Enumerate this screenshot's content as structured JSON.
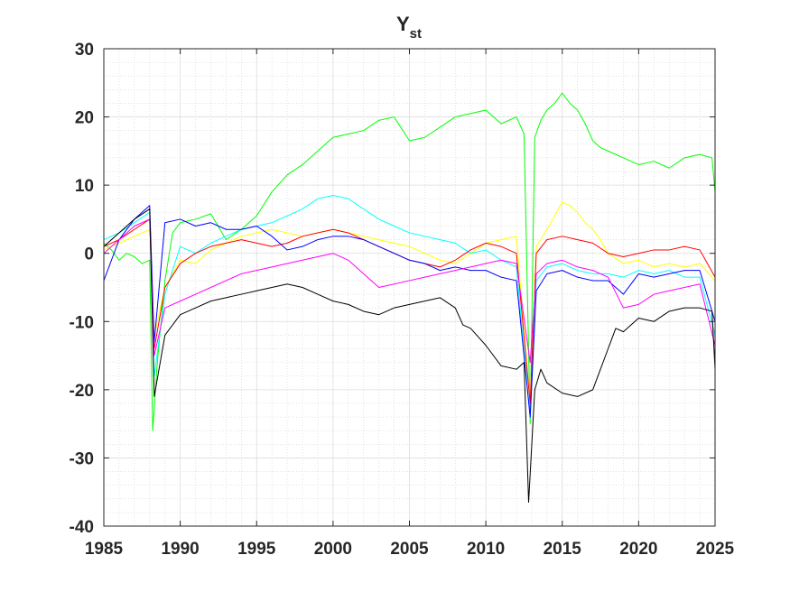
{
  "chart_data": {
    "type": "line",
    "title": "Y",
    "title_subscript": "st",
    "xlabel": "",
    "ylabel": "",
    "xlim": [
      1985,
      2025
    ],
    "ylim": [
      -40,
      30
    ],
    "x_ticks": [
      1985,
      1990,
      1995,
      2000,
      2005,
      2010,
      2015,
      2020,
      2025
    ],
    "y_ticks": [
      -40,
      -30,
      -20,
      -10,
      0,
      10,
      20,
      30
    ],
    "x_tick_labels": [
      "1985",
      "1990",
      "1995",
      "2000",
      "2005",
      "2010",
      "2015",
      "2020",
      "2025"
    ],
    "y_tick_labels": [
      "-40",
      "-30",
      "-20",
      "-10",
      "0",
      "10",
      "20",
      "30"
    ],
    "grid": true,
    "minor_grid": true,
    "legend": "none",
    "series": [
      {
        "color": "#00ff00",
        "x": [
          1985.0,
          1985.5,
          1986.0,
          1986.5,
          1987.0,
          1987.5,
          1988.0,
          1988.2,
          1988.5,
          1989.0,
          1989.5,
          1990.0,
          1991.0,
          1992.0,
          1993.0,
          1994.0,
          1995.0,
          1996.0,
          1997.0,
          1998.0,
          1999.0,
          2000.0,
          2001.0,
          2002.0,
          2003.0,
          2004.0,
          2005.0,
          2006.0,
          2007.0,
          2008.0,
          2009.0,
          2010.0,
          2011.0,
          2012.0,
          2012.5,
          2012.9,
          2013.2,
          2013.6,
          2014.0,
          2014.5,
          2015.0,
          2015.5,
          2016.0,
          2016.5,
          2017.0,
          2017.5,
          2018.0,
          2018.5,
          2019.0,
          2019.5,
          2020.0,
          2021.0,
          2022.0,
          2023.0,
          2024.0,
          2024.8,
          2025.0
        ],
        "y": [
          1.5,
          0.5,
          -1.0,
          0.0,
          -0.5,
          -1.5,
          -1.0,
          -26.0,
          -16.0,
          -4.0,
          3.0,
          4.5,
          5.0,
          5.8,
          2.0,
          3.5,
          5.5,
          9.0,
          11.5,
          13.0,
          15.0,
          17.0,
          17.5,
          18.0,
          19.5,
          20.0,
          16.5,
          17.0,
          18.5,
          20.0,
          20.5,
          21.0,
          19.0,
          20.0,
          17.5,
          -25.0,
          17.0,
          19.5,
          21.0,
          22.0,
          23.5,
          22.0,
          21.0,
          19.0,
          16.5,
          15.5,
          15.0,
          14.5,
          14.0,
          13.5,
          13.0,
          13.5,
          12.5,
          14.0,
          14.5,
          14.0,
          9.0
        ]
      },
      {
        "color": "#ffff00",
        "x": [
          1985.0,
          1986.0,
          1987.0,
          1988.0,
          1988.3,
          1989.0,
          1990.0,
          1991.0,
          1992.0,
          1993.0,
          1994.0,
          1995.0,
          1996.0,
          1997.0,
          1998.0,
          1999.0,
          2000.0,
          2001.0,
          2002.0,
          2003.0,
          2004.0,
          2005.0,
          2006.0,
          2007.0,
          2008.0,
          2009.0,
          2010.0,
          2011.0,
          2012.0,
          2012.9,
          2013.3,
          2014.0,
          2014.5,
          2015.0,
          2015.5,
          2016.0,
          2016.5,
          2017.0,
          2017.5,
          2018.0,
          2019.0,
          2020.0,
          2021.0,
          2022.0,
          2023.0,
          2024.0,
          2025.0
        ],
        "y": [
          0.5,
          1.5,
          2.5,
          3.5,
          -12.0,
          -5.0,
          -1.0,
          -1.5,
          0.5,
          1.5,
          2.5,
          3.0,
          3.5,
          3.0,
          2.5,
          3.0,
          3.5,
          3.0,
          2.5,
          2.0,
          1.5,
          1.0,
          0.0,
          -1.0,
          -1.5,
          0.0,
          1.5,
          2.0,
          2.5,
          -22.0,
          1.0,
          3.5,
          5.5,
          7.5,
          7.0,
          6.0,
          4.5,
          3.5,
          2.0,
          0.0,
          -1.5,
          -1.0,
          -2.0,
          -1.5,
          -2.0,
          -1.5,
          -4.0
        ]
      },
      {
        "color": "#00ffff",
        "x": [
          1985.0,
          1986.0,
          1987.0,
          1988.0,
          1988.3,
          1989.0,
          1990.0,
          1991.0,
          1992.0,
          1993.0,
          1994.0,
          1995.0,
          1996.0,
          1997.0,
          1998.0,
          1999.0,
          2000.0,
          2001.0,
          2002.0,
          2003.0,
          2004.0,
          2005.0,
          2006.0,
          2007.0,
          2008.0,
          2009.0,
          2010.0,
          2011.0,
          2012.0,
          2012.9,
          2013.3,
          2014.0,
          2015.0,
          2016.0,
          2017.0,
          2018.0,
          2019.0,
          2020.0,
          2021.0,
          2022.0,
          2023.0,
          2024.0,
          2025.0
        ],
        "y": [
          2.0,
          3.0,
          4.5,
          6.0,
          -18.0,
          -6.0,
          1.0,
          0.0,
          1.5,
          2.5,
          3.5,
          4.0,
          4.5,
          5.5,
          6.5,
          8.0,
          8.5,
          8.0,
          6.5,
          5.0,
          4.0,
          3.0,
          2.5,
          2.0,
          1.5,
          0.0,
          0.5,
          -1.0,
          -2.0,
          -24.0,
          -4.0,
          -2.0,
          -1.5,
          -2.5,
          -3.0,
          -3.0,
          -3.5,
          -2.5,
          -3.0,
          -2.5,
          -3.5,
          -3.5,
          -12.0
        ]
      },
      {
        "color": "#ff0000",
        "x": [
          1985.0,
          1986.0,
          1987.0,
          1988.0,
          1988.3,
          1989.0,
          1990.0,
          1991.0,
          1992.0,
          1993.0,
          1994.0,
          1995.0,
          1996.0,
          1997.0,
          1998.0,
          1999.0,
          2000.0,
          2001.0,
          2002.0,
          2003.0,
          2004.0,
          2005.0,
          2006.0,
          2007.0,
          2008.0,
          2009.0,
          2010.0,
          2011.0,
          2012.0,
          2012.9,
          2013.3,
          2014.0,
          2015.0,
          2016.0,
          2017.0,
          2018.0,
          2019.0,
          2020.0,
          2021.0,
          2022.0,
          2023.0,
          2024.0,
          2025.0
        ],
        "y": [
          1.0,
          2.0,
          3.5,
          5.0,
          -14.0,
          -5.0,
          -1.5,
          0.0,
          1.0,
          1.5,
          2.0,
          1.5,
          1.0,
          1.5,
          2.5,
          3.0,
          3.5,
          3.0,
          2.0,
          1.0,
          0.0,
          -1.0,
          -1.5,
          -2.0,
          -1.0,
          0.5,
          1.5,
          1.0,
          0.0,
          -22.0,
          0.0,
          2.0,
          2.5,
          2.0,
          1.5,
          0.0,
          -0.5,
          0.0,
          0.5,
          0.5,
          1.0,
          0.5,
          -3.5
        ]
      },
      {
        "color": "#0000ff",
        "x": [
          1985.0,
          1986.0,
          1987.0,
          1988.0,
          1988.3,
          1989.0,
          1990.0,
          1991.0,
          1992.0,
          1993.0,
          1994.0,
          1995.0,
          1996.0,
          1997.0,
          1998.0,
          1999.0,
          2000.0,
          2001.0,
          2002.0,
          2003.0,
          2004.0,
          2005.0,
          2006.0,
          2007.0,
          2008.0,
          2009.0,
          2010.0,
          2011.0,
          2012.0,
          2012.9,
          2013.3,
          2014.0,
          2015.0,
          2016.0,
          2017.0,
          2018.0,
          2019.0,
          2020.0,
          2021.0,
          2022.0,
          2023.0,
          2024.0,
          2025.0
        ],
        "y": [
          -4.0,
          2.0,
          5.0,
          7.0,
          -13.0,
          4.5,
          5.0,
          4.0,
          4.5,
          3.5,
          3.5,
          4.0,
          2.5,
          0.5,
          1.0,
          2.0,
          2.5,
          2.5,
          2.0,
          1.0,
          0.0,
          -1.0,
          -1.5,
          -2.5,
          -2.0,
          -2.5,
          -2.5,
          -3.5,
          -4.0,
          -24.0,
          -5.5,
          -3.0,
          -2.5,
          -3.5,
          -4.0,
          -4.0,
          -6.0,
          -3.0,
          -3.5,
          -3.0,
          -2.5,
          -2.5,
          -10.0
        ]
      },
      {
        "color": "#ff00ff",
        "x": [
          1985.0,
          1986.0,
          1987.0,
          1988.0,
          1988.3,
          1989.0,
          1990.0,
          1991.0,
          1992.0,
          1993.0,
          1994.0,
          1995.0,
          1996.0,
          1997.0,
          1998.0,
          1999.0,
          2000.0,
          2001.0,
          2002.0,
          2003.0,
          2004.0,
          2005.0,
          2006.0,
          2007.0,
          2008.0,
          2009.0,
          2010.0,
          2011.0,
          2012.0,
          2012.9,
          2013.3,
          2014.0,
          2015.0,
          2016.0,
          2017.0,
          2018.0,
          2019.0,
          2020.0,
          2021.0,
          2022.0,
          2023.0,
          2024.0,
          2025.0
        ],
        "y": [
          0.0,
          2.0,
          4.0,
          5.0,
          -15.0,
          -8.0,
          -7.0,
          -6.0,
          -5.0,
          -4.0,
          -3.0,
          -2.5,
          -2.0,
          -1.5,
          -1.0,
          -0.5,
          0.0,
          -1.0,
          -3.0,
          -5.0,
          -4.5,
          -4.0,
          -3.5,
          -3.0,
          -2.5,
          -2.0,
          -1.5,
          -1.0,
          -1.5,
          -16.0,
          -3.0,
          -1.5,
          -1.0,
          -2.0,
          -2.5,
          -3.5,
          -8.0,
          -7.5,
          -6.0,
          -5.5,
          -5.0,
          -4.5,
          -13.5
        ]
      },
      {
        "color": "#000000",
        "x": [
          1985.0,
          1986.0,
          1987.0,
          1988.0,
          1988.3,
          1989.0,
          1990.0,
          1991.0,
          1992.0,
          1993.0,
          1994.0,
          1995.0,
          1996.0,
          1997.0,
          1998.0,
          1999.0,
          2000.0,
          2001.0,
          2002.0,
          2003.0,
          2004.0,
          2005.0,
          2006.0,
          2007.0,
          2008.0,
          2008.5,
          2009.0,
          2010.0,
          2011.0,
          2012.0,
          2012.5,
          2012.8,
          2013.2,
          2013.6,
          2014.0,
          2015.0,
          2016.0,
          2017.0,
          2017.5,
          2018.0,
          2018.5,
          2019.0,
          2020.0,
          2021.0,
          2022.0,
          2023.0,
          2024.0,
          2024.8,
          2025.0
        ],
        "y": [
          1.0,
          3.0,
          5.0,
          6.5,
          -21.0,
          -12.0,
          -9.0,
          -8.0,
          -7.0,
          -6.5,
          -6.0,
          -5.5,
          -5.0,
          -4.5,
          -5.0,
          -6.0,
          -7.0,
          -7.5,
          -8.5,
          -9.0,
          -8.0,
          -7.5,
          -7.0,
          -6.5,
          -8.0,
          -10.5,
          -11.0,
          -13.5,
          -16.5,
          -17.0,
          -16.0,
          -36.5,
          -20.0,
          -17.0,
          -19.0,
          -20.5,
          -21.0,
          -20.0,
          -17.0,
          -14.0,
          -11.0,
          -11.5,
          -9.5,
          -10.0,
          -8.5,
          -8.0,
          -8.0,
          -8.5,
          -17.0
        ]
      }
    ]
  }
}
